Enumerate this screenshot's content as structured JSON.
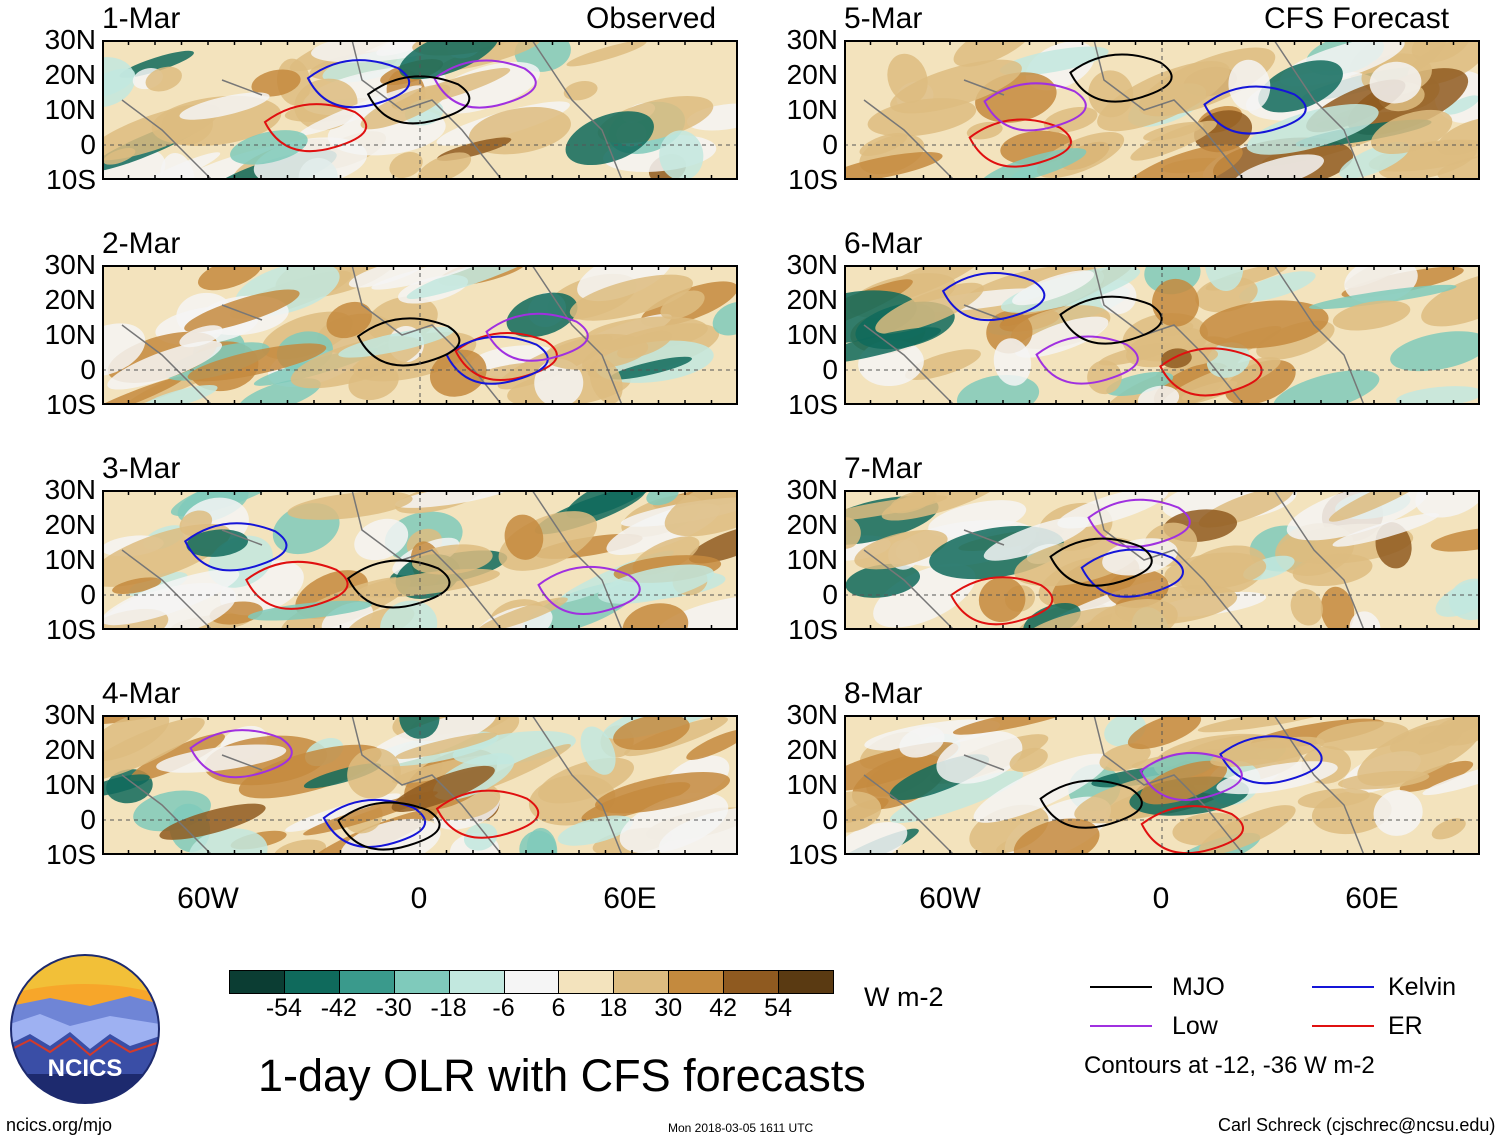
{
  "figure": {
    "title": "1-day OLR with CFS forecasts",
    "units": "W m-2",
    "contours_note": "Contours at -12, -36 W m-2",
    "footer_left": "ncics.org/mjo",
    "footer_center": "Mon 2018-03-05 1611 UTC",
    "footer_right": "Carl Schreck (cjschrec@ncsu.edu)",
    "logo_text": "NCICS",
    "observed_label": "Observed",
    "forecast_label": "CFS Forecast"
  },
  "lat_labels": [
    "30N",
    "20N",
    "10N",
    "0",
    "10S"
  ],
  "lon_labels": [
    "60W",
    "0",
    "60E"
  ],
  "panels": [
    {
      "date": "1-Mar",
      "kind": "observed"
    },
    {
      "date": "2-Mar",
      "kind": "observed"
    },
    {
      "date": "3-Mar",
      "kind": "observed"
    },
    {
      "date": "4-Mar",
      "kind": "observed"
    },
    {
      "date": "5-Mar",
      "kind": "forecast"
    },
    {
      "date": "6-Mar",
      "kind": "forecast"
    },
    {
      "date": "7-Mar",
      "kind": "forecast"
    },
    {
      "date": "8-Mar",
      "kind": "forecast"
    }
  ],
  "colorbar": {
    "colors": [
      "#0b3d33",
      "#0f6a5c",
      "#3a9a8c",
      "#7fcabb",
      "#c2e8df",
      "#f5f5f5",
      "#f3e3bd",
      "#ddbc80",
      "#c48a3e",
      "#8f5a20",
      "#5a3a12"
    ],
    "ticks": [
      "-54",
      "-42",
      "-30",
      "-18",
      "-6",
      "6",
      "18",
      "30",
      "42",
      "54"
    ]
  },
  "legend": [
    {
      "label": "MJO",
      "color": "#000000"
    },
    {
      "label": "Kelvin",
      "color": "#1515d8"
    },
    {
      "label": "Low",
      "color": "#a030e0"
    },
    {
      "label": "ER",
      "color": "#e01010"
    }
  ]
}
